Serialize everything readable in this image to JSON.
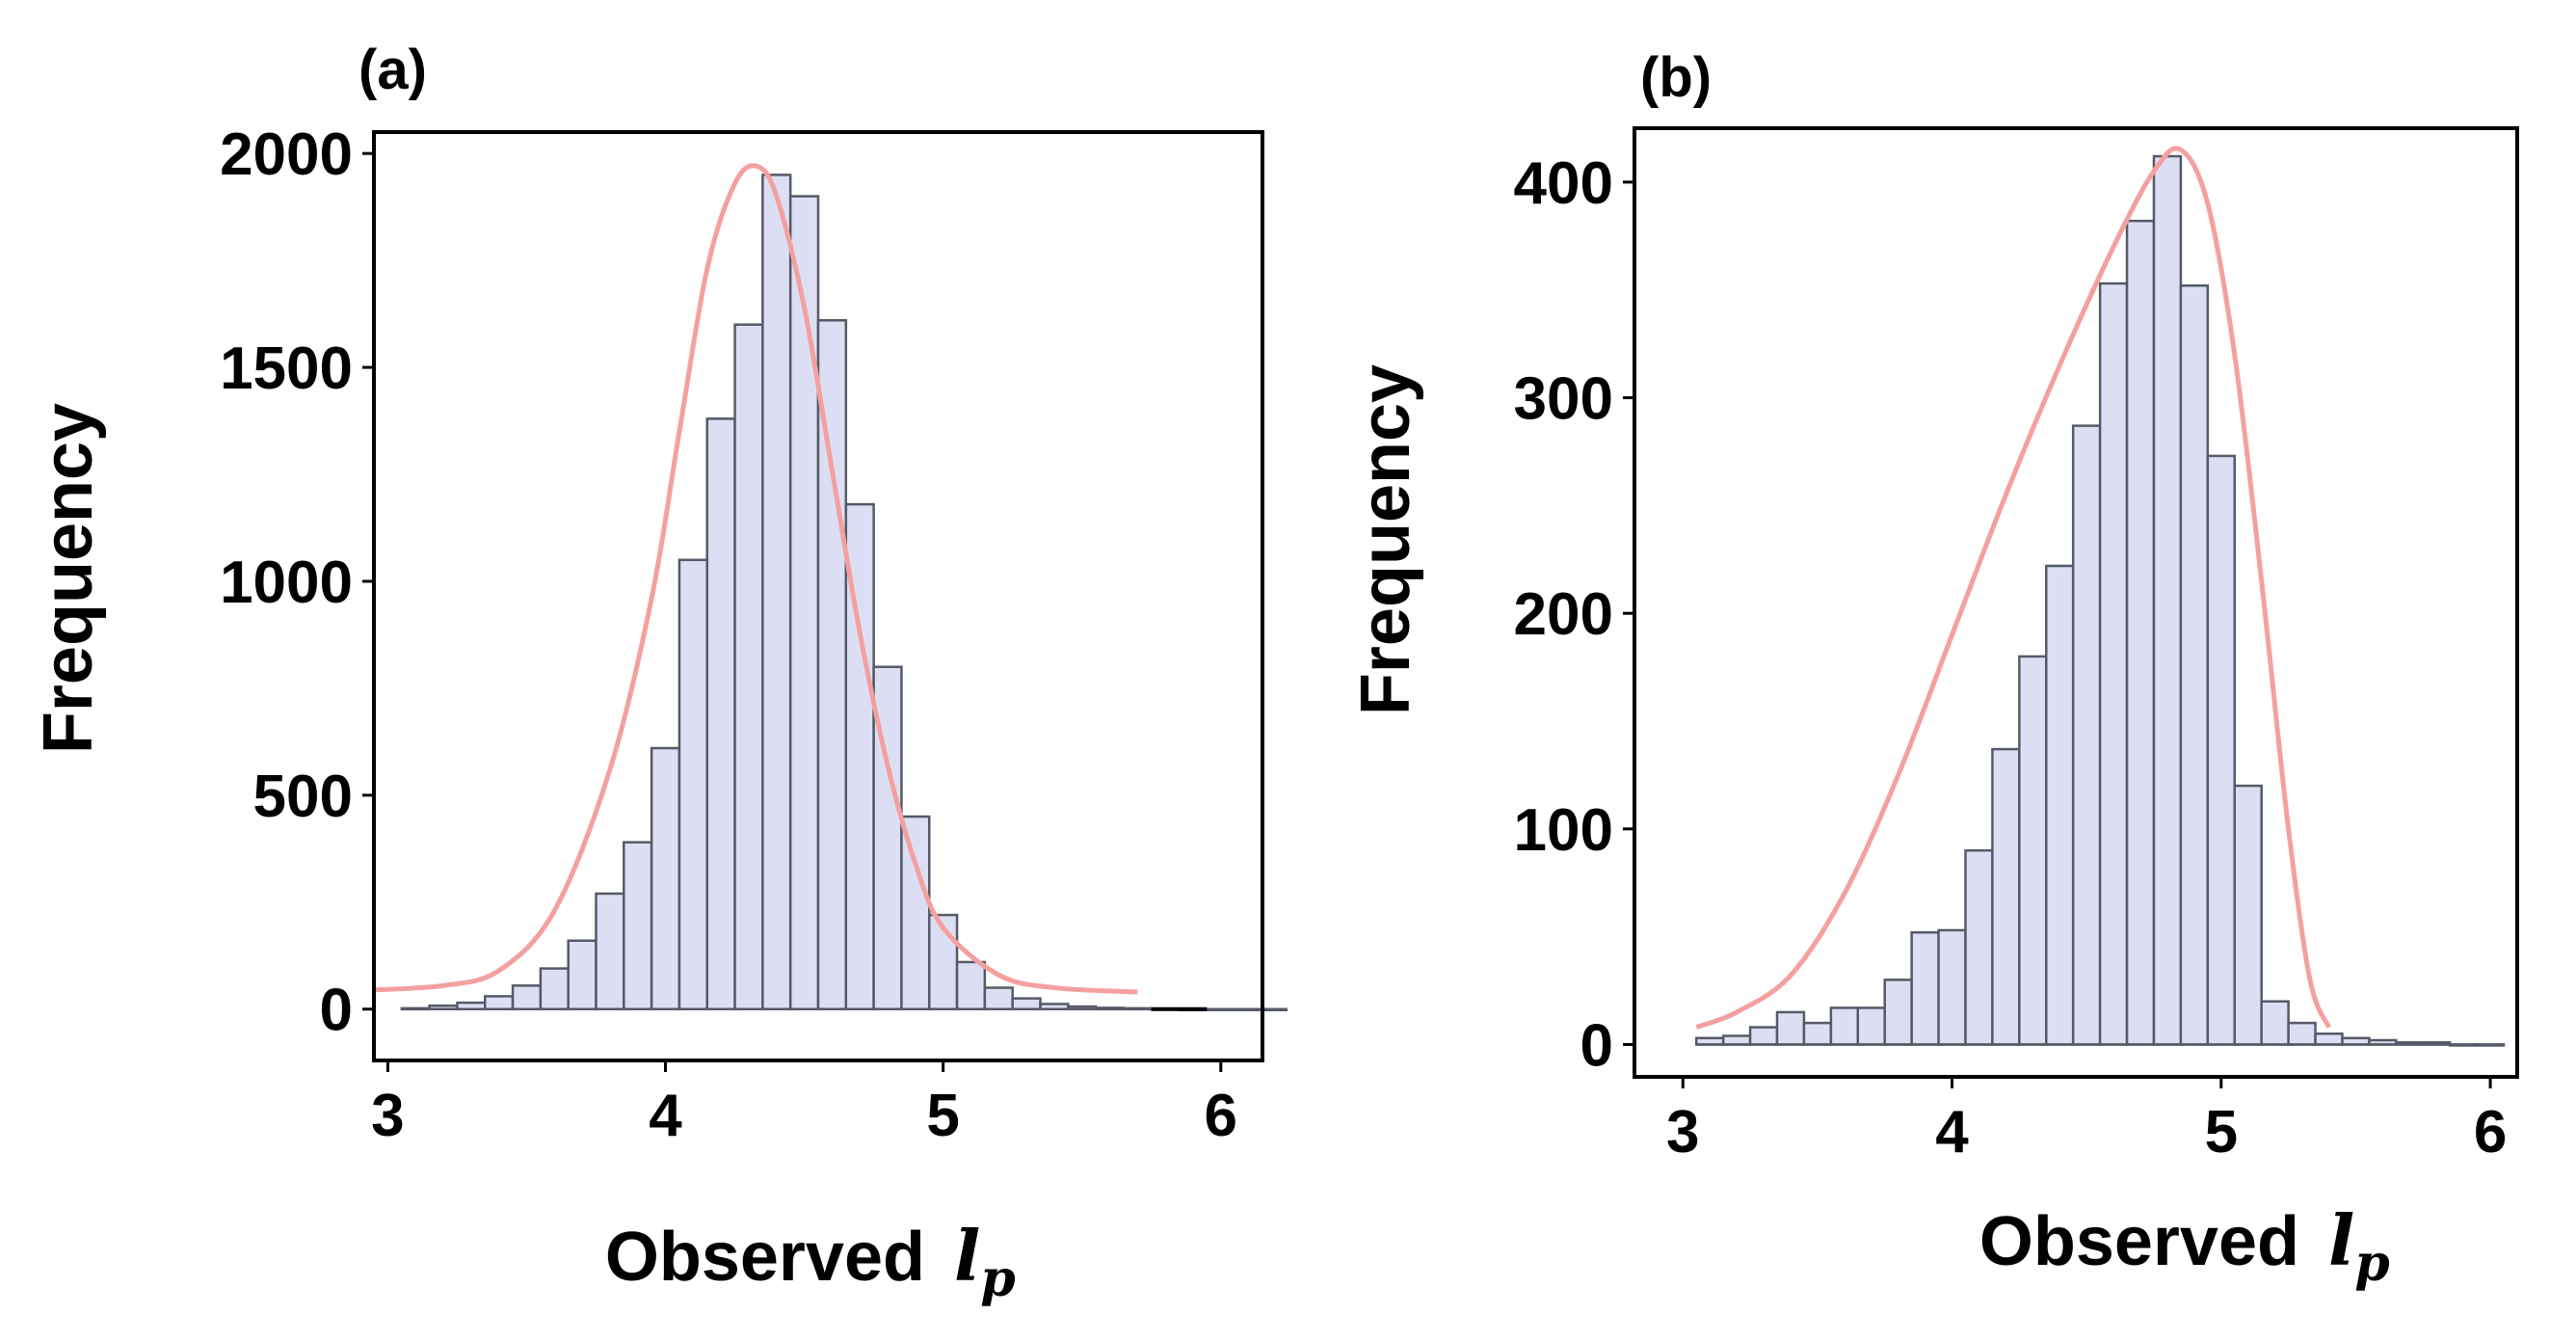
{
  "chart_data": [
    {
      "panel_label": "(a)",
      "type": "bar",
      "subtype": "histogram",
      "xlabel": "Observed",
      "xlabel_symbol": "l",
      "xlabel_subscript": "p",
      "ylabel": "Frequency",
      "xlim": [
        2.95,
        6.15
      ],
      "ylim": [
        -120,
        2050
      ],
      "xticks": [
        3,
        4,
        5,
        6
      ],
      "xtick_labels": [
        "3",
        "4",
        "5",
        "6"
      ],
      "yticks": [
        0,
        500,
        1000,
        1500,
        2000
      ],
      "ytick_labels": [
        "0",
        "500",
        "1000",
        "1500",
        "2000"
      ],
      "bin_start": 3.05,
      "bin_width": 0.1,
      "values": [
        2,
        8,
        15,
        30,
        55,
        95,
        160,
        270,
        390,
        610,
        1050,
        1380,
        1600,
        1950,
        1900,
        1610,
        1180,
        800,
        450,
        220,
        110,
        50,
        25,
        12,
        6,
        3,
        2,
        1,
        0,
        0,
        0,
        0,
        0,
        0,
        0,
        0,
        0,
        0,
        0,
        0
      ],
      "fit_curve": {
        "label": "fitted curve",
        "x": [
          2.95,
          3.2,
          3.4,
          3.6,
          3.8,
          3.95,
          4.05,
          4.15,
          4.25,
          4.33,
          4.4,
          4.5,
          4.6,
          4.7,
          4.8,
          4.9,
          5.0,
          5.2,
          5.4,
          5.7
        ],
        "y": [
          45,
          55,
          90,
          230,
          560,
          960,
          1350,
          1730,
          1930,
          1970,
          1900,
          1640,
          1260,
          880,
          570,
          340,
          190,
          80,
          50,
          40
        ]
      },
      "tail_segment": {
        "x": [
          5.75,
          5.95
        ],
        "y": [
          0,
          0
        ]
      },
      "colors": {
        "bar_fill": "#dcdff4",
        "bar_edge": "#555a66",
        "curve": "#f4a0a0",
        "axis": "#000000"
      }
    },
    {
      "panel_label": "(b)",
      "type": "bar",
      "subtype": "histogram",
      "xlabel": "Observed",
      "xlabel_symbol": "l",
      "xlabel_subscript": "p",
      "ylabel": "Frequency",
      "xlim": [
        2.82,
        6.1
      ],
      "ylim": [
        -15,
        425
      ],
      "xticks": [
        3,
        4,
        5,
        6
      ],
      "xtick_labels": [
        "3",
        "4",
        "5",
        "6"
      ],
      "yticks": [
        0,
        100,
        200,
        300,
        400
      ],
      "ytick_labels": [
        "0",
        "100",
        "200",
        "300",
        "400"
      ],
      "bin_start": 3.05,
      "bin_width": 0.1,
      "values": [
        3,
        4,
        8,
        15,
        10,
        17,
        17,
        30,
        52,
        53,
        90,
        137,
        180,
        222,
        287,
        353,
        382,
        412,
        352,
        273,
        120,
        20,
        10,
        5,
        3,
        2,
        1,
        1,
        0,
        0
      ],
      "fit_curve": {
        "label": "fitted curve",
        "x": [
          3.05,
          3.2,
          3.4,
          3.6,
          3.8,
          4.0,
          4.2,
          4.4,
          4.6,
          4.75,
          4.85,
          4.95,
          5.05,
          5.15,
          5.25,
          5.33,
          5.4
        ],
        "y": [
          8,
          15,
          32,
          70,
          125,
          190,
          255,
          315,
          370,
          405,
          415,
          390,
          320,
          215,
          100,
          30,
          8
        ]
      },
      "colors": {
        "bar_fill": "#dcdff4",
        "bar_edge": "#555a66",
        "curve": "#f4a0a0",
        "axis": "#000000"
      }
    }
  ]
}
